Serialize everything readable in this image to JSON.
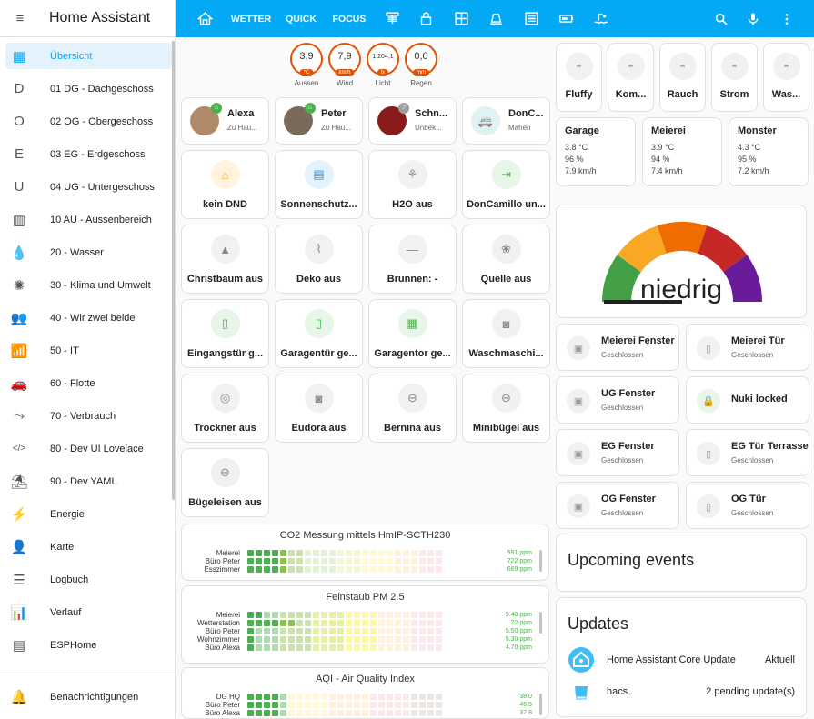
{
  "sidebar": {
    "title": "Home Assistant",
    "items": [
      {
        "label": "Übersicht",
        "icon": "view-dashboard-icon",
        "glyph": "▦"
      },
      {
        "label": "01 DG - Dachgeschoss",
        "icon": "letter-d-icon",
        "glyph": "D"
      },
      {
        "label": "02 OG - Obergeschoss",
        "icon": "letter-o-icon",
        "glyph": "O"
      },
      {
        "label": "03 EG - Erdgeschoss",
        "icon": "letter-e-icon",
        "glyph": "E"
      },
      {
        "label": "04 UG - Untergeschoss",
        "icon": "letter-u-icon",
        "glyph": "U"
      },
      {
        "label": "10 AU - Aussenbereich",
        "icon": "fence-icon",
        "glyph": "▥"
      },
      {
        "label": "20 - Wasser",
        "icon": "water-icon",
        "glyph": "💧"
      },
      {
        "label": "30 - Klima und Umwelt",
        "icon": "climate-icon",
        "glyph": "✺"
      },
      {
        "label": "40 - Wir zwei beide",
        "icon": "account-multiple-icon",
        "glyph": "👥"
      },
      {
        "label": "50 - IT",
        "icon": "router-icon",
        "glyph": "📶"
      },
      {
        "label": "60 - Flotte",
        "icon": "car-multiple-icon",
        "glyph": "🚗"
      },
      {
        "label": "70 - Verbrauch",
        "icon": "call-merge-icon",
        "glyph": "⤳"
      },
      {
        "label": "80 - Dev UI Lovelace",
        "icon": "code-tags-icon",
        "glyph": "</>"
      },
      {
        "label": "90 - Dev YAML",
        "icon": "beach-icon",
        "glyph": "⛱"
      },
      {
        "label": "Energie",
        "icon": "lightning-icon",
        "glyph": "⚡"
      },
      {
        "label": "Karte",
        "icon": "map-account-icon",
        "glyph": "👤"
      },
      {
        "label": "Logbuch",
        "icon": "logbook-list-icon",
        "glyph": "☰"
      },
      {
        "label": "Verlauf",
        "icon": "chart-box-icon",
        "glyph": "📊"
      },
      {
        "label": "ESPHome",
        "icon": "esphome-chip-icon",
        "glyph": "▤"
      }
    ],
    "notifications_label": "Benachrichtigungen"
  },
  "topbar": {
    "tabs": [
      "WETTER",
      "QUICK",
      "FOCUS"
    ]
  },
  "badges": [
    {
      "value": "3,9",
      "unit": "°C",
      "label": "Aussen"
    },
    {
      "value": "7,9",
      "unit": "km/h",
      "label": "Wind"
    },
    {
      "value": "1.204,1",
      "unit": "lx",
      "label": "Licht"
    },
    {
      "value": "0,0",
      "unit": "mm",
      "label": "Regen"
    }
  ],
  "persons": [
    {
      "name": "Alexa",
      "state": "Zu Hau..."
    },
    {
      "name": "Peter",
      "state": "Zu Hau..."
    },
    {
      "name": "Schn...",
      "state": "Unbek..."
    },
    {
      "name": "DonC...",
      "state": "Mahen"
    }
  ],
  "tiles": [
    {
      "label": "kein DND",
      "icon": "home-heart-icon",
      "glyph": "⌂",
      "bg": "#fff3e0",
      "fg": "#ff9800"
    },
    {
      "label": "Sonnenschutz...",
      "icon": "blinds-icon",
      "glyph": "▤",
      "bg": "#e3f2fd",
      "fg": "#2196f3"
    },
    {
      "label": "H2O aus",
      "icon": "water-pump-icon",
      "glyph": "⚘",
      "bg": "#f1f1f1",
      "fg": "#888888"
    },
    {
      "label": "DonCamillo un...",
      "icon": "export-icon",
      "glyph": "⇥",
      "bg": "#e8f5e9",
      "fg": "#4caf50"
    },
    {
      "label": "Christbaum aus",
      "icon": "pine-tree-icon",
      "glyph": "▲",
      "bg": "#f1f1f1",
      "fg": "#888888"
    },
    {
      "label": "Deko aus",
      "icon": "string-lights-icon",
      "glyph": "⌇",
      "bg": "#f1f1f1",
      "fg": "#888888"
    },
    {
      "label": "Brunnen: -",
      "icon": "minus-icon",
      "glyph": "—",
      "bg": "#f1f1f1",
      "fg": "#888888"
    },
    {
      "label": "Quelle aus",
      "icon": "flower-icon",
      "glyph": "❀",
      "bg": "#f1f1f1",
      "fg": "#888888"
    },
    {
      "label": "Eingangstür g...",
      "icon": "door-closed-icon",
      "glyph": "▯",
      "bg": "#e8f5e9",
      "fg": "#4caf50"
    },
    {
      "label": "Garagentür ge...",
      "icon": "door-closed-icon",
      "glyph": "▯",
      "bg": "#e8f5e9",
      "fg": "#4caf50"
    },
    {
      "label": "Garagentor ge...",
      "icon": "garage-icon",
      "glyph": "▦",
      "bg": "#e8f5e9",
      "fg": "#4caf50"
    },
    {
      "label": "Waschmaschi...",
      "icon": "washing-machine-icon",
      "glyph": "◙",
      "bg": "#f1f1f1",
      "fg": "#888888"
    },
    {
      "label": "Trockner aus",
      "icon": "tumble-dryer-icon",
      "glyph": "◎",
      "bg": "#f1f1f1",
      "fg": "#888888"
    },
    {
      "label": "Eudora aus",
      "icon": "washing-machine-icon",
      "glyph": "◙",
      "bg": "#f1f1f1",
      "fg": "#888888"
    },
    {
      "label": "Bernina aus",
      "icon": "toggle-switch-off-icon",
      "glyph": "⊖",
      "bg": "#f1f1f1",
      "fg": "#888888"
    },
    {
      "label": "Minibügel aus",
      "icon": "toggle-switch-off-icon",
      "glyph": "⊖",
      "bg": "#f1f1f1",
      "fg": "#888888"
    },
    {
      "label": "Bügeleisen aus",
      "icon": "toggle-switch-off-icon",
      "glyph": "⊖",
      "bg": "#f1f1f1",
      "fg": "#888888"
    }
  ],
  "heatmaps": [
    {
      "title": "CO2 Messung mittels HmIP-SCTH230",
      "rows": [
        {
          "label": "Meierei",
          "value": "591 ppm",
          "level": 4
        },
        {
          "label": "Büro Peter",
          "value": "722 ppm",
          "level": 4
        },
        {
          "label": "Esszimmer",
          "value": "669 ppm",
          "level": 4
        }
      ],
      "scale": [
        "#4caf50",
        "#8bc34a",
        "#c5e1a5",
        "#e6ee9c",
        "#fff59d",
        "#ffe0b2",
        "#ffcdd2"
      ]
    },
    {
      "title": "Feinstaub PM 2.5",
      "rows": [
        {
          "label": "Meierei",
          "value": "9.40 ppm",
          "level": 1
        },
        {
          "label": "Wetterstation",
          "value": "22 ppm",
          "level": 5
        },
        {
          "label": "Büro Peter",
          "value": "5.50 ppm",
          "level": 0
        },
        {
          "label": "Wohnzimmer",
          "value": "5.30 ppm",
          "level": 0
        },
        {
          "label": "Büro Alexa",
          "value": "4.70 ppm",
          "level": 0
        }
      ],
      "scale": [
        "#4caf50",
        "#8bc34a",
        "#cddc39",
        "#ffeb3b",
        "#ffe0b2",
        "#ffcdd2"
      ]
    },
    {
      "title": "AQI - Air Quality Index",
      "rows": [
        {
          "label": "DG HQ",
          "value": "38.0",
          "level": 3
        },
        {
          "label": "Büro Peter",
          "value": "46.5",
          "level": 3
        },
        {
          "label": "Büro Alexa",
          "value": "37.8",
          "level": 3
        }
      ],
      "scale": [
        "#4caf50",
        "#fff59d",
        "#ffe0b2",
        "#ffcdd2",
        "#d7ccc8"
      ]
    }
  ],
  "small_tiles": [
    {
      "label": "Fluffy"
    },
    {
      "label": "Kom..."
    },
    {
      "label": "Rauch"
    },
    {
      "label": "Strom"
    },
    {
      "label": "Was..."
    }
  ],
  "weather": [
    {
      "name": "Garage",
      "temp": "3.8 °C",
      "hum": "96 %",
      "wind": "7.9 km/h"
    },
    {
      "name": "Meierei",
      "temp": "3.9 °C",
      "hum": "94 %",
      "wind": "7.4 km/h"
    },
    {
      "name": "Monster",
      "temp": "4.3 °C",
      "hum": "95 %",
      "wind": "7.2 km/h"
    }
  ],
  "gauge": {
    "value_label": "niedrig",
    "value": 0,
    "segments": [
      "#43a047",
      "#f9a825",
      "#ef6c00",
      "#c62828",
      "#6a1b9a"
    ]
  },
  "windows": [
    {
      "name": "Meierei Fenster",
      "state": "Geschlossen",
      "icon": "window-closed-icon",
      "locked": false
    },
    {
      "name": "Meierei Tür",
      "state": "Geschlossen",
      "icon": "door-closed-icon",
      "locked": false
    },
    {
      "name": "UG Fenster",
      "state": "Geschlossen",
      "icon": "window-closed-icon",
      "locked": false
    },
    {
      "name": "Nuki locked",
      "state": "",
      "icon": "lock-icon",
      "locked": true
    },
    {
      "name": "EG Fenster",
      "state": "Geschlossen",
      "icon": "window-closed-icon",
      "locked": false
    },
    {
      "name": "EG Tür Terrasse",
      "state": "Geschlossen",
      "icon": "door-closed-icon",
      "locked": false
    },
    {
      "name": "OG Fenster",
      "state": "Geschlossen",
      "icon": "window-closed-icon",
      "locked": false
    },
    {
      "name": "OG Tür",
      "state": "Geschlossen",
      "icon": "door-closed-icon",
      "locked": false
    }
  ],
  "upcoming": {
    "title": "Upcoming events"
  },
  "updates": {
    "title": "Updates",
    "items": [
      {
        "name": "Home Assistant Core Update",
        "status": "Aktuell"
      },
      {
        "name": "hacs",
        "status": "2 pending update(s)"
      }
    ]
  }
}
